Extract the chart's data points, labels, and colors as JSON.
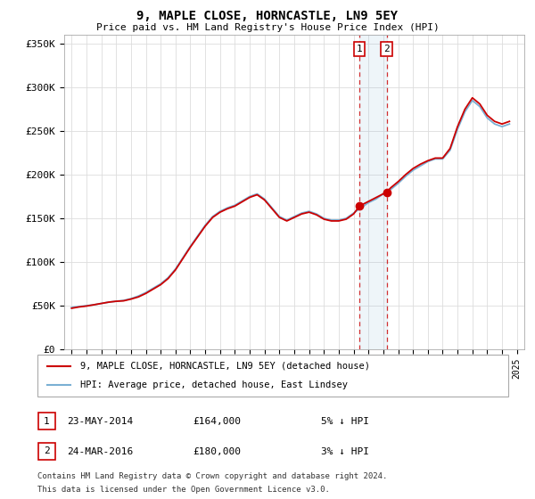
{
  "title": "9, MAPLE CLOSE, HORNCASTLE, LN9 5EY",
  "subtitle": "Price paid vs. HM Land Registry's House Price Index (HPI)",
  "ylabel_ticks": [
    "£0",
    "£50K",
    "£100K",
    "£150K",
    "£200K",
    "£250K",
    "£300K",
    "£350K"
  ],
  "ytick_values": [
    0,
    50000,
    100000,
    150000,
    200000,
    250000,
    300000,
    350000
  ],
  "ylim": [
    0,
    360000
  ],
  "xlim_start": 1994.5,
  "xlim_end": 2025.5,
  "transaction1": {
    "date": "23-MAY-2014",
    "price": 164000,
    "pct": "5%",
    "dir": "↓",
    "label": "1",
    "x": 2014.39
  },
  "transaction2": {
    "date": "24-MAR-2016",
    "price": 180000,
    "pct": "3%",
    "dir": "↓",
    "label": "2",
    "x": 2016.22
  },
  "legend_label_red": "9, MAPLE CLOSE, HORNCASTLE, LN9 5EY (detached house)",
  "legend_label_blue": "HPI: Average price, detached house, East Lindsey",
  "footer1": "Contains HM Land Registry data © Crown copyright and database right 2024.",
  "footer2": "This data is licensed under the Open Government Licence v3.0.",
  "red_color": "#cc0000",
  "blue_color": "#7ab0d4",
  "hpi_years": [
    1995,
    1995.5,
    1996,
    1996.5,
    1997,
    1997.5,
    1998,
    1998.5,
    1999,
    1999.5,
    2000,
    2000.5,
    2001,
    2001.5,
    2002,
    2002.5,
    2003,
    2003.5,
    2004,
    2004.5,
    2005,
    2005.5,
    2006,
    2006.5,
    2007,
    2007.5,
    2008,
    2008.5,
    2009,
    2009.5,
    2010,
    2010.5,
    2011,
    2011.5,
    2012,
    2012.5,
    2013,
    2013.5,
    2014,
    2014.5,
    2015,
    2015.5,
    2016,
    2016.5,
    2017,
    2017.5,
    2018,
    2018.5,
    2019,
    2019.5,
    2020,
    2020.5,
    2021,
    2021.5,
    2022,
    2022.5,
    2023,
    2023.5,
    2024,
    2024.5
  ],
  "hpi_values": [
    48000,
    49000,
    50000,
    51000,
    52500,
    54000,
    55000,
    56000,
    58000,
    61000,
    65000,
    70000,
    75000,
    82000,
    92000,
    105000,
    118000,
    130000,
    142000,
    152000,
    158000,
    162000,
    165000,
    170000,
    175000,
    178000,
    172000,
    162000,
    152000,
    148000,
    152000,
    156000,
    158000,
    155000,
    150000,
    148000,
    148000,
    150000,
    156000,
    162000,
    168000,
    172000,
    178000,
    183000,
    190000,
    198000,
    205000,
    210000,
    215000,
    218000,
    218000,
    228000,
    252000,
    272000,
    285000,
    278000,
    265000,
    258000,
    255000,
    258000
  ],
  "red_years": [
    1995,
    1995.5,
    1996,
    1996.5,
    1997,
    1997.5,
    1998,
    1998.5,
    1999,
    1999.5,
    2000,
    2000.5,
    2001,
    2001.5,
    2002,
    2002.5,
    2003,
    2003.5,
    2004,
    2004.5,
    2005,
    2005.5,
    2006,
    2006.5,
    2007,
    2007.5,
    2008,
    2008.5,
    2009,
    2009.5,
    2010,
    2010.5,
    2011,
    2011.5,
    2012,
    2012.5,
    2013,
    2013.5,
    2014,
    2014.39,
    2016.22,
    2016.5,
    2017,
    2017.5,
    2018,
    2018.5,
    2019,
    2019.5,
    2020,
    2020.5,
    2021,
    2021.5,
    2022,
    2022.5,
    2023,
    2023.5,
    2024,
    2024.5
  ],
  "red_values": [
    47000,
    48500,
    49500,
    51000,
    52500,
    54000,
    55000,
    55500,
    57500,
    60000,
    64000,
    69000,
    74000,
    81000,
    91000,
    104000,
    117000,
    129000,
    141000,
    151000,
    157000,
    161000,
    164000,
    169000,
    174000,
    177000,
    171000,
    161000,
    151000,
    147000,
    151000,
    155000,
    157000,
    154000,
    149000,
    147000,
    147000,
    149000,
    155000,
    164000,
    180000,
    185000,
    192000,
    200000,
    207000,
    212000,
    216000,
    219000,
    219000,
    230000,
    255000,
    275000,
    288000,
    281000,
    268000,
    261000,
    258000,
    261000
  ]
}
